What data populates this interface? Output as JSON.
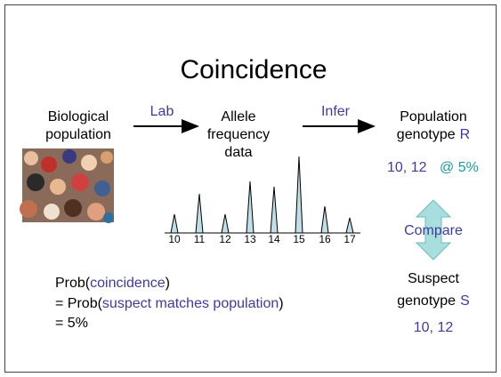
{
  "title": "Coincidence",
  "source": {
    "lines": [
      "Biological",
      "population"
    ]
  },
  "edges": [
    {
      "label": "Lab"
    },
    {
      "label": "Infer"
    }
  ],
  "middle": {
    "lines": [
      "Allele",
      "frequency",
      "data"
    ]
  },
  "target": {
    "line1": "Population",
    "line2": "genotype",
    "symbol": "R",
    "genotype": "10, 12",
    "frequency": "@ 5%"
  },
  "alleles": [
    "10",
    "11",
    "12",
    "13",
    "14",
    "15",
    "16",
    "17"
  ],
  "compare": "Compare",
  "suspect": {
    "line1": "Suspect",
    "line2": "genotype",
    "symbol": "S",
    "genotype": "10, 12"
  },
  "formula": {
    "line1_prefix": "Prob(",
    "line1_term": "coincidence",
    "line1_suffix": ")",
    "line2_prefix": "= Prob(",
    "line2_term": "suspect matches population",
    "line2_suffix": ")",
    "line3": "= 5%"
  }
}
